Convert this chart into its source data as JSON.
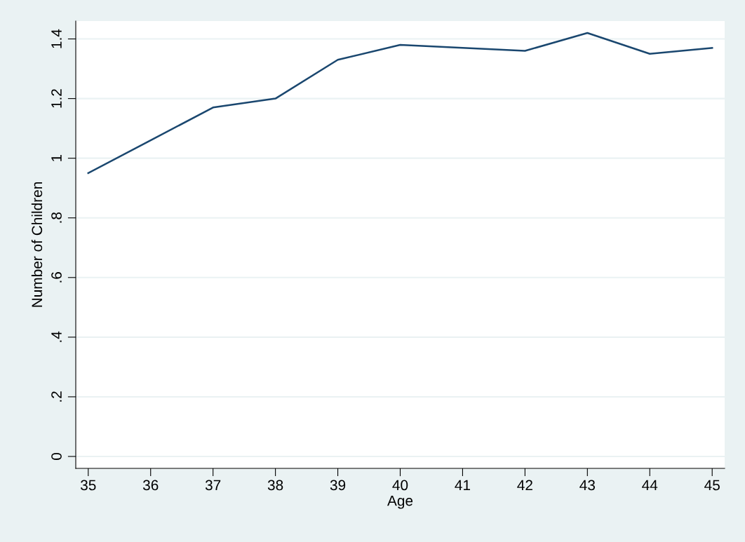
{
  "chart_data": {
    "type": "line",
    "xlabel": "Age",
    "ylabel": "Number of Children",
    "x": [
      35,
      36,
      37,
      38,
      39,
      40,
      41,
      42,
      43,
      44,
      45
    ],
    "series": [
      {
        "color": "#1a476f",
        "values": [
          0.95,
          1.06,
          1.17,
          1.2,
          1.33,
          1.38,
          1.37,
          1.36,
          1.42,
          1.35,
          1.37
        ]
      }
    ],
    "xlim": [
      34.8,
      45.2
    ],
    "xticks": [
      35,
      36,
      37,
      38,
      39,
      40,
      41,
      42,
      43,
      44,
      45
    ],
    "ylim": [
      -0.04,
      1.46
    ],
    "yticks": [
      {
        "value": 0,
        "label": "0"
      },
      {
        "value": 0.2,
        "label": ".2"
      },
      {
        "value": 0.4,
        "label": ".4"
      },
      {
        "value": 0.6,
        "label": ".6"
      },
      {
        "value": 0.8,
        "label": ".8"
      },
      {
        "value": 1,
        "label": "1"
      },
      {
        "value": 1.2,
        "label": "1.2"
      },
      {
        "value": 1.4,
        "label": "1.4"
      }
    ],
    "grid": "y",
    "legend": false,
    "marker": "none",
    "line_style": "solid"
  }
}
